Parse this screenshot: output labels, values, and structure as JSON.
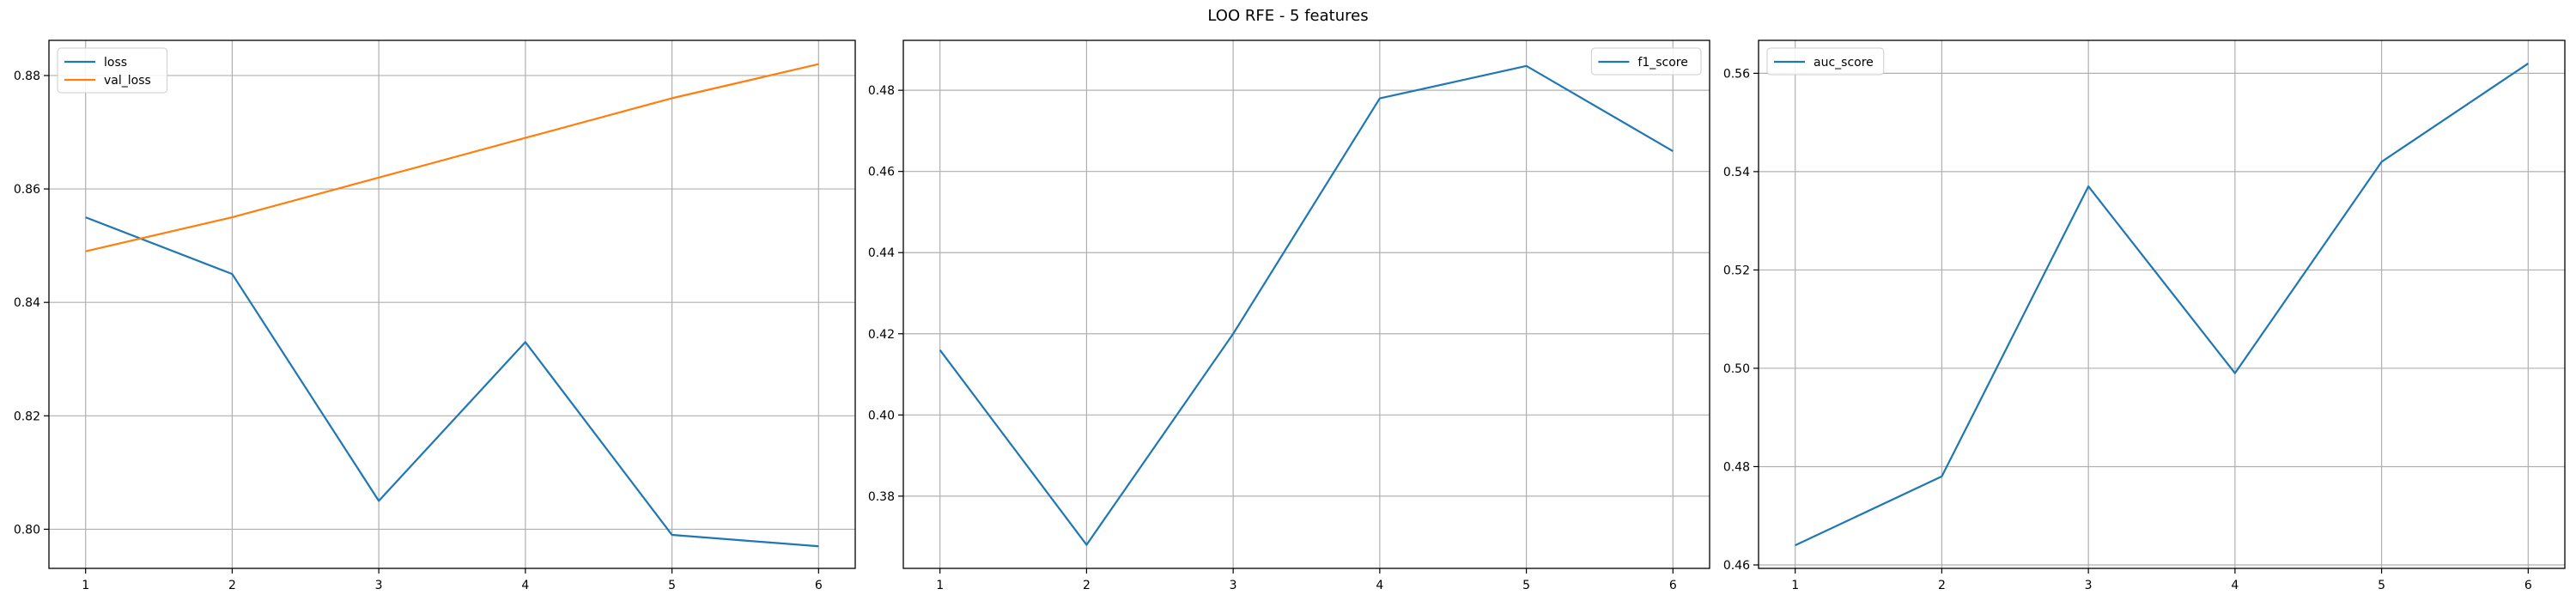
{
  "figure": {
    "suptitle": "LOO RFE - 5 features"
  },
  "chart_data": [
    {
      "type": "line",
      "x": [
        1,
        2,
        3,
        4,
        5,
        6
      ],
      "series": [
        {
          "name": "loss",
          "color": "#1f77b4",
          "values": [
            0.855,
            0.845,
            0.805,
            0.833,
            0.799,
            0.797
          ]
        },
        {
          "name": "val_loss",
          "color": "#ff7f0e",
          "values": [
            0.849,
            0.855,
            0.862,
            0.869,
            0.876,
            0.882
          ]
        }
      ],
      "xticks": [
        1,
        2,
        3,
        4,
        5,
        6
      ],
      "yticks": [
        0.8,
        0.82,
        0.84,
        0.86,
        0.88
      ],
      "ytick_labels": [
        "0.80",
        "0.82",
        "0.84",
        "0.86",
        "0.88"
      ],
      "xlim": [
        0.75,
        6.25
      ],
      "ylim": [
        0.7931,
        0.8862
      ],
      "grid": true,
      "legend_position": "upper left",
      "title": "",
      "xlabel": "",
      "ylabel": ""
    },
    {
      "type": "line",
      "x": [
        1,
        2,
        3,
        4,
        5,
        6
      ],
      "series": [
        {
          "name": "f1_score",
          "color": "#1f77b4",
          "values": [
            0.416,
            0.368,
            0.42,
            0.478,
            0.486,
            0.465
          ]
        }
      ],
      "xticks": [
        1,
        2,
        3,
        4,
        5,
        6
      ],
      "yticks": [
        0.38,
        0.4,
        0.42,
        0.44,
        0.46,
        0.48
      ],
      "ytick_labels": [
        "0.38",
        "0.40",
        "0.42",
        "0.44",
        "0.46",
        "0.48"
      ],
      "xlim": [
        0.75,
        6.25
      ],
      "ylim": [
        0.3622,
        0.4923
      ],
      "grid": true,
      "legend_position": "upper right",
      "title": "",
      "xlabel": "",
      "ylabel": ""
    },
    {
      "type": "line",
      "x": [
        1,
        2,
        3,
        4,
        5,
        6
      ],
      "series": [
        {
          "name": "auc_score",
          "color": "#1f77b4",
          "values": [
            0.464,
            0.478,
            0.537,
            0.499,
            0.542,
            0.562
          ]
        }
      ],
      "xticks": [
        1,
        2,
        3,
        4,
        5,
        6
      ],
      "yticks": [
        0.46,
        0.48,
        0.5,
        0.52,
        0.54,
        0.56
      ],
      "ytick_labels": [
        "0.46",
        "0.48",
        "0.50",
        "0.52",
        "0.54",
        "0.56"
      ],
      "xlim": [
        0.75,
        6.25
      ],
      "ylim": [
        0.4593,
        0.5667
      ],
      "grid": true,
      "legend_position": "upper left",
      "title": "",
      "xlabel": "",
      "ylabel": ""
    }
  ]
}
